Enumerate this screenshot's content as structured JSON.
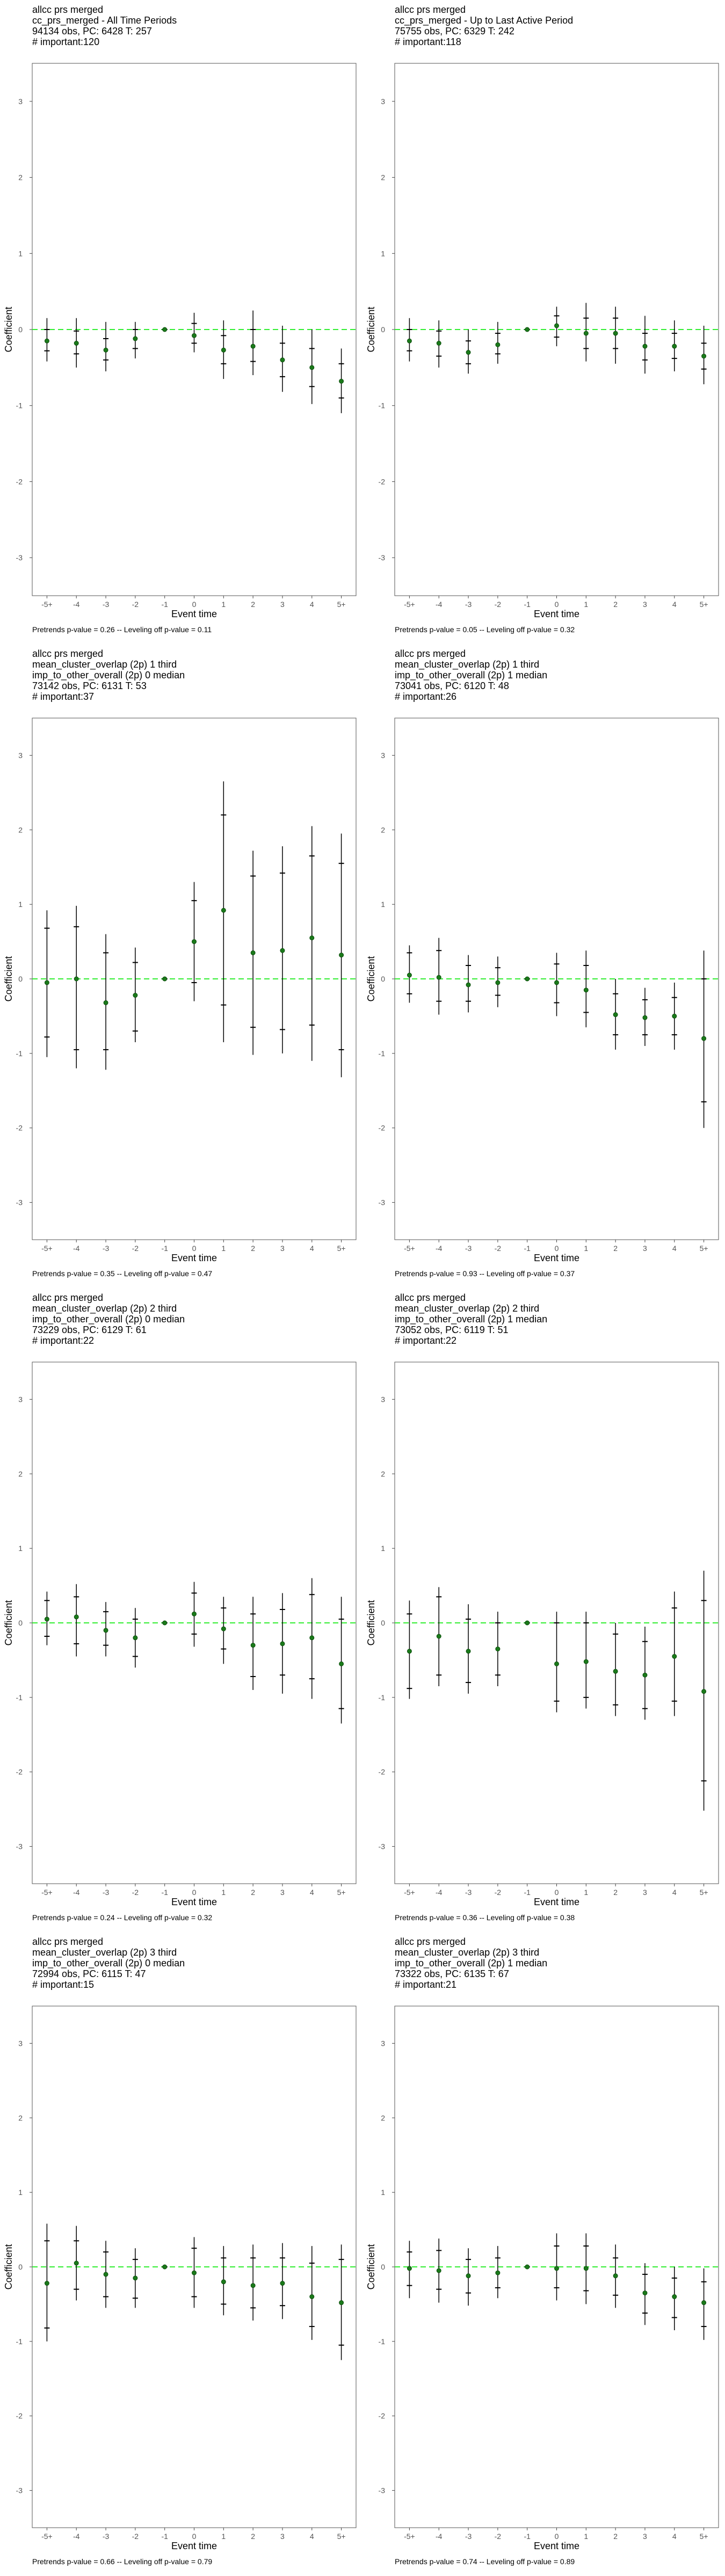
{
  "chart_data": [
    {
      "type": "scatter",
      "title_lines": [
        "allcc prs merged",
        "cc_prs_merged - All Time Periods",
        "94134 obs, PC: 6428 T: 257",
        "# important:120"
      ],
      "xlabel": "Event time",
      "ylabel": "Coefficient",
      "categories": [
        "-5+",
        "-4",
        "-3",
        "-2",
        "-1",
        "0",
        "1",
        "2",
        "3",
        "4",
        "5+"
      ],
      "ylim": [
        -3.5,
        3.5
      ],
      "yticks": [
        -3,
        -2,
        -1,
        0,
        1,
        2,
        3
      ],
      "reference_line": 0,
      "series": [
        {
          "estimate": [
            -0.15,
            -0.18,
            -0.27,
            -0.12,
            0.0,
            -0.08,
            -0.27,
            -0.22,
            -0.4,
            -0.5,
            -0.68
          ],
          "ci_outer_low": [
            -0.42,
            -0.5,
            -0.55,
            -0.38,
            0.0,
            -0.3,
            -0.65,
            -0.6,
            -0.82,
            -0.98,
            -1.1
          ],
          "ci_outer_high": [
            0.15,
            0.15,
            0.1,
            0.1,
            0.0,
            0.22,
            0.12,
            0.25,
            0.05,
            0.0,
            -0.25
          ],
          "ci_inner_low": [
            -0.28,
            -0.32,
            -0.4,
            -0.25,
            0.0,
            -0.18,
            -0.45,
            -0.42,
            -0.62,
            -0.75,
            -0.9
          ],
          "ci_inner_high": [
            0.0,
            -0.02,
            -0.12,
            0.0,
            0.0,
            0.08,
            -0.08,
            0.0,
            -0.18,
            -0.25,
            -0.45
          ]
        }
      ],
      "caption": "Pretrends p-value = 0.26 -- Leveling off p-value = 0.11"
    },
    {
      "type": "scatter",
      "title_lines": [
        "allcc prs merged",
        "cc_prs_merged - Up to Last Active Period",
        "75755 obs, PC: 6329 T: 242",
        "# important:118"
      ],
      "xlabel": "Event time",
      "ylabel": "Coefficient",
      "categories": [
        "-5+",
        "-4",
        "-3",
        "-2",
        "-1",
        "0",
        "1",
        "2",
        "3",
        "4",
        "5+"
      ],
      "ylim": [
        -3.5,
        3.5
      ],
      "yticks": [
        -3,
        -2,
        -1,
        0,
        1,
        2,
        3
      ],
      "reference_line": 0,
      "series": [
        {
          "estimate": [
            -0.15,
            -0.18,
            -0.3,
            -0.2,
            0.0,
            0.05,
            -0.05,
            -0.05,
            -0.22,
            -0.22,
            -0.35
          ],
          "ci_outer_low": [
            -0.42,
            -0.5,
            -0.58,
            -0.45,
            0.0,
            -0.22,
            -0.42,
            -0.45,
            -0.58,
            -0.55,
            -0.72
          ],
          "ci_outer_high": [
            0.15,
            0.12,
            0.0,
            0.1,
            0.0,
            0.3,
            0.35,
            0.3,
            0.18,
            0.12,
            0.05
          ],
          "ci_inner_low": [
            -0.28,
            -0.35,
            -0.45,
            -0.32,
            0.0,
            -0.1,
            -0.25,
            -0.25,
            -0.4,
            -0.38,
            -0.52
          ],
          "ci_inner_high": [
            0.0,
            -0.02,
            -0.15,
            -0.05,
            0.0,
            0.18,
            0.15,
            0.15,
            -0.05,
            -0.05,
            -0.18
          ]
        }
      ],
      "caption": "Pretrends p-value = 0.05 -- Leveling off p-value = 0.32"
    },
    {
      "type": "scatter",
      "title_lines": [
        "allcc prs merged",
        "mean_cluster_overlap (2p) 1 third",
        "imp_to_other_overall (2p) 0 median",
        "73142 obs, PC: 6131 T: 53",
        "# important:37"
      ],
      "xlabel": "Event time",
      "ylabel": "Coefficient",
      "categories": [
        "-5+",
        "-4",
        "-3",
        "-2",
        "-1",
        "0",
        "1",
        "2",
        "3",
        "4",
        "5+"
      ],
      "ylim": [
        -3.5,
        3.5
      ],
      "yticks": [
        -3,
        -2,
        -1,
        0,
        1,
        2,
        3
      ],
      "reference_line": 0,
      "series": [
        {
          "estimate": [
            -0.05,
            0.0,
            -0.32,
            -0.22,
            0.0,
            0.5,
            0.92,
            0.35,
            0.38,
            0.55,
            0.32
          ],
          "ci_outer_low": [
            -1.05,
            -1.2,
            -1.22,
            -0.85,
            0.0,
            -0.3,
            -0.85,
            -1.02,
            -1.0,
            -1.1,
            -1.32
          ],
          "ci_outer_high": [
            0.92,
            0.98,
            0.6,
            0.42,
            0.0,
            1.3,
            2.65,
            1.72,
            1.78,
            2.05,
            1.95
          ],
          "ci_inner_low": [
            -0.78,
            -0.95,
            -0.95,
            -0.7,
            0.0,
            -0.05,
            -0.35,
            -0.65,
            -0.68,
            -0.62,
            -0.95
          ],
          "ci_inner_high": [
            0.68,
            0.7,
            0.35,
            0.22,
            0.0,
            1.05,
            2.2,
            1.38,
            1.42,
            1.65,
            1.55
          ]
        }
      ],
      "caption": "Pretrends p-value = 0.35 -- Leveling off p-value = 0.47"
    },
    {
      "type": "scatter",
      "title_lines": [
        "allcc prs merged",
        "mean_cluster_overlap (2p) 1 third",
        "imp_to_other_overall (2p) 1 median",
        "73041 obs, PC: 6120 T: 48",
        "# important:26"
      ],
      "xlabel": "Event time",
      "ylabel": "Coefficient",
      "categories": [
        "-5+",
        "-4",
        "-3",
        "-2",
        "-1",
        "0",
        "1",
        "2",
        "3",
        "4",
        "5+"
      ],
      "ylim": [
        -3.5,
        3.5
      ],
      "yticks": [
        -3,
        -2,
        -1,
        0,
        1,
        2,
        3
      ],
      "reference_line": 0,
      "series": [
        {
          "estimate": [
            0.05,
            0.02,
            -0.08,
            -0.05,
            0.0,
            -0.05,
            -0.15,
            -0.48,
            -0.52,
            -0.5,
            -0.8
          ],
          "ci_outer_low": [
            -0.32,
            -0.48,
            -0.45,
            -0.38,
            0.0,
            -0.5,
            -0.65,
            -0.95,
            -0.9,
            -0.95,
            -2.0
          ],
          "ci_outer_high": [
            0.45,
            0.55,
            0.32,
            0.3,
            0.0,
            0.35,
            0.38,
            0.0,
            -0.12,
            -0.05,
            0.38
          ],
          "ci_inner_low": [
            -0.2,
            -0.3,
            -0.3,
            -0.22,
            0.0,
            -0.32,
            -0.45,
            -0.75,
            -0.75,
            -0.75,
            -1.65
          ],
          "ci_inner_high": [
            0.35,
            0.38,
            0.18,
            0.15,
            0.0,
            0.2,
            0.18,
            -0.2,
            -0.28,
            -0.25,
            0.0
          ]
        }
      ],
      "caption": "Pretrends p-value = 0.93 -- Leveling off p-value = 0.37"
    },
    {
      "type": "scatter",
      "title_lines": [
        "allcc prs merged",
        "mean_cluster_overlap (2p) 2 third",
        "imp_to_other_overall (2p) 0 median",
        "73229 obs, PC: 6129 T: 61",
        "# important:22"
      ],
      "xlabel": "Event time",
      "ylabel": "Coefficient",
      "categories": [
        "-5+",
        "-4",
        "-3",
        "-2",
        "-1",
        "0",
        "1",
        "2",
        "3",
        "4",
        "5+"
      ],
      "ylim": [
        -3.5,
        3.5
      ],
      "yticks": [
        -3,
        -2,
        -1,
        0,
        1,
        2,
        3
      ],
      "reference_line": 0,
      "series": [
        {
          "estimate": [
            0.05,
            0.08,
            -0.1,
            -0.2,
            0.0,
            0.12,
            -0.08,
            -0.3,
            -0.28,
            -0.2,
            -0.55
          ],
          "ci_outer_low": [
            -0.3,
            -0.45,
            -0.45,
            -0.6,
            0.0,
            -0.32,
            -0.55,
            -0.9,
            -0.95,
            -1.02,
            -1.35
          ],
          "ci_outer_high": [
            0.42,
            0.52,
            0.28,
            0.2,
            0.0,
            0.55,
            0.35,
            0.35,
            0.4,
            0.6,
            0.35
          ],
          "ci_inner_low": [
            -0.18,
            -0.28,
            -0.3,
            -0.45,
            0.0,
            -0.15,
            -0.35,
            -0.72,
            -0.7,
            -0.75,
            -1.15
          ],
          "ci_inner_high": [
            0.3,
            0.35,
            0.15,
            0.05,
            0.0,
            0.4,
            0.2,
            0.12,
            0.18,
            0.38,
            0.05
          ]
        }
      ],
      "caption": "Pretrends p-value = 0.24 -- Leveling off p-value = 0.32"
    },
    {
      "type": "scatter",
      "title_lines": [
        "allcc prs merged",
        "mean_cluster_overlap (2p) 2 third",
        "imp_to_other_overall (2p) 1 median",
        "73052 obs, PC: 6119 T: 51",
        "# important:22"
      ],
      "xlabel": "Event time",
      "ylabel": "Coefficient",
      "categories": [
        "-5+",
        "-4",
        "-3",
        "-2",
        "-1",
        "0",
        "1",
        "2",
        "3",
        "4",
        "5+"
      ],
      "ylim": [
        -3.5,
        3.5
      ],
      "yticks": [
        -3,
        -2,
        -1,
        0,
        1,
        2,
        3
      ],
      "reference_line": 0,
      "series": [
        {
          "estimate": [
            -0.38,
            -0.18,
            -0.38,
            -0.35,
            0.0,
            -0.55,
            -0.52,
            -0.65,
            -0.7,
            -0.45,
            -0.92
          ],
          "ci_outer_low": [
            -1.02,
            -0.85,
            -0.95,
            -0.85,
            0.0,
            -1.2,
            -1.15,
            -1.25,
            -1.3,
            -1.25,
            -2.52
          ],
          "ci_outer_high": [
            0.3,
            0.48,
            0.25,
            0.15,
            0.0,
            0.15,
            0.15,
            0.0,
            -0.05,
            0.42,
            0.7
          ],
          "ci_inner_low": [
            -0.88,
            -0.7,
            -0.8,
            -0.7,
            0.0,
            -1.05,
            -1.0,
            -1.1,
            -1.15,
            -1.05,
            -2.12
          ],
          "ci_inner_high": [
            0.12,
            0.35,
            0.05,
            0.0,
            0.0,
            0.0,
            0.0,
            -0.15,
            -0.25,
            0.2,
            0.3
          ]
        }
      ],
      "caption": "Pretrends p-value = 0.36 -- Leveling off p-value = 0.38"
    },
    {
      "type": "scatter",
      "title_lines": [
        "allcc prs merged",
        "mean_cluster_overlap (2p) 3 third",
        "imp_to_other_overall (2p) 0 median",
        "72994 obs, PC: 6115 T: 47",
        "# important:15"
      ],
      "xlabel": "Event time",
      "ylabel": "Coefficient",
      "categories": [
        "-5+",
        "-4",
        "-3",
        "-2",
        "-1",
        "0",
        "1",
        "2",
        "3",
        "4",
        "5+"
      ],
      "ylim": [
        -3.5,
        3.5
      ],
      "yticks": [
        -3,
        -2,
        -1,
        0,
        1,
        2,
        3
      ],
      "reference_line": 0,
      "series": [
        {
          "estimate": [
            -0.22,
            0.05,
            -0.1,
            -0.15,
            0.0,
            -0.08,
            -0.2,
            -0.25,
            -0.22,
            -0.4,
            -0.48
          ],
          "ci_outer_low": [
            -1.0,
            -0.45,
            -0.55,
            -0.55,
            0.0,
            -0.55,
            -0.65,
            -0.72,
            -0.7,
            -0.98,
            -1.25
          ],
          "ci_outer_high": [
            0.58,
            0.55,
            0.35,
            0.25,
            0.0,
            0.4,
            0.28,
            0.3,
            0.32,
            0.28,
            0.3
          ],
          "ci_inner_low": [
            -0.82,
            -0.3,
            -0.4,
            -0.42,
            0.0,
            -0.4,
            -0.5,
            -0.55,
            -0.52,
            -0.8,
            -1.05
          ],
          "ci_inner_high": [
            0.35,
            0.35,
            0.2,
            0.1,
            0.0,
            0.25,
            0.12,
            0.12,
            0.12,
            0.05,
            0.1
          ]
        }
      ],
      "caption": "Pretrends p-value = 0.66 -- Leveling off p-value = 0.79"
    },
    {
      "type": "scatter",
      "title_lines": [
        "allcc prs merged",
        "mean_cluster_overlap (2p) 3 third",
        "imp_to_other_overall (2p) 1 median",
        "73322 obs, PC: 6135 T: 67",
        "# important:21"
      ],
      "xlabel": "Event time",
      "ylabel": "Coefficient",
      "categories": [
        "-5+",
        "-4",
        "-3",
        "-2",
        "-1",
        "0",
        "1",
        "2",
        "3",
        "4",
        "5+"
      ],
      "ylim": [
        -3.5,
        3.5
      ],
      "yticks": [
        -3,
        -2,
        -1,
        0,
        1,
        2,
        3
      ],
      "reference_line": 0,
      "series": [
        {
          "estimate": [
            -0.02,
            -0.05,
            -0.12,
            -0.08,
            0.0,
            -0.02,
            -0.02,
            -0.12,
            -0.35,
            -0.4,
            -0.48
          ],
          "ci_outer_low": [
            -0.42,
            -0.48,
            -0.52,
            -0.42,
            0.0,
            -0.45,
            -0.5,
            -0.55,
            -0.78,
            -0.85,
            -0.98
          ],
          "ci_outer_high": [
            0.35,
            0.38,
            0.25,
            0.28,
            0.0,
            0.45,
            0.45,
            0.3,
            0.05,
            0.0,
            -0.02
          ],
          "ci_inner_low": [
            -0.25,
            -0.3,
            -0.35,
            -0.28,
            0.0,
            -0.28,
            -0.32,
            -0.38,
            -0.62,
            -0.68,
            -0.8
          ],
          "ci_inner_high": [
            0.2,
            0.22,
            0.1,
            0.12,
            0.0,
            0.28,
            0.28,
            0.12,
            -0.1,
            -0.15,
            -0.2
          ]
        }
      ],
      "caption": "Pretrends p-value = 0.74 -- Leveling off p-value = 0.89"
    }
  ]
}
